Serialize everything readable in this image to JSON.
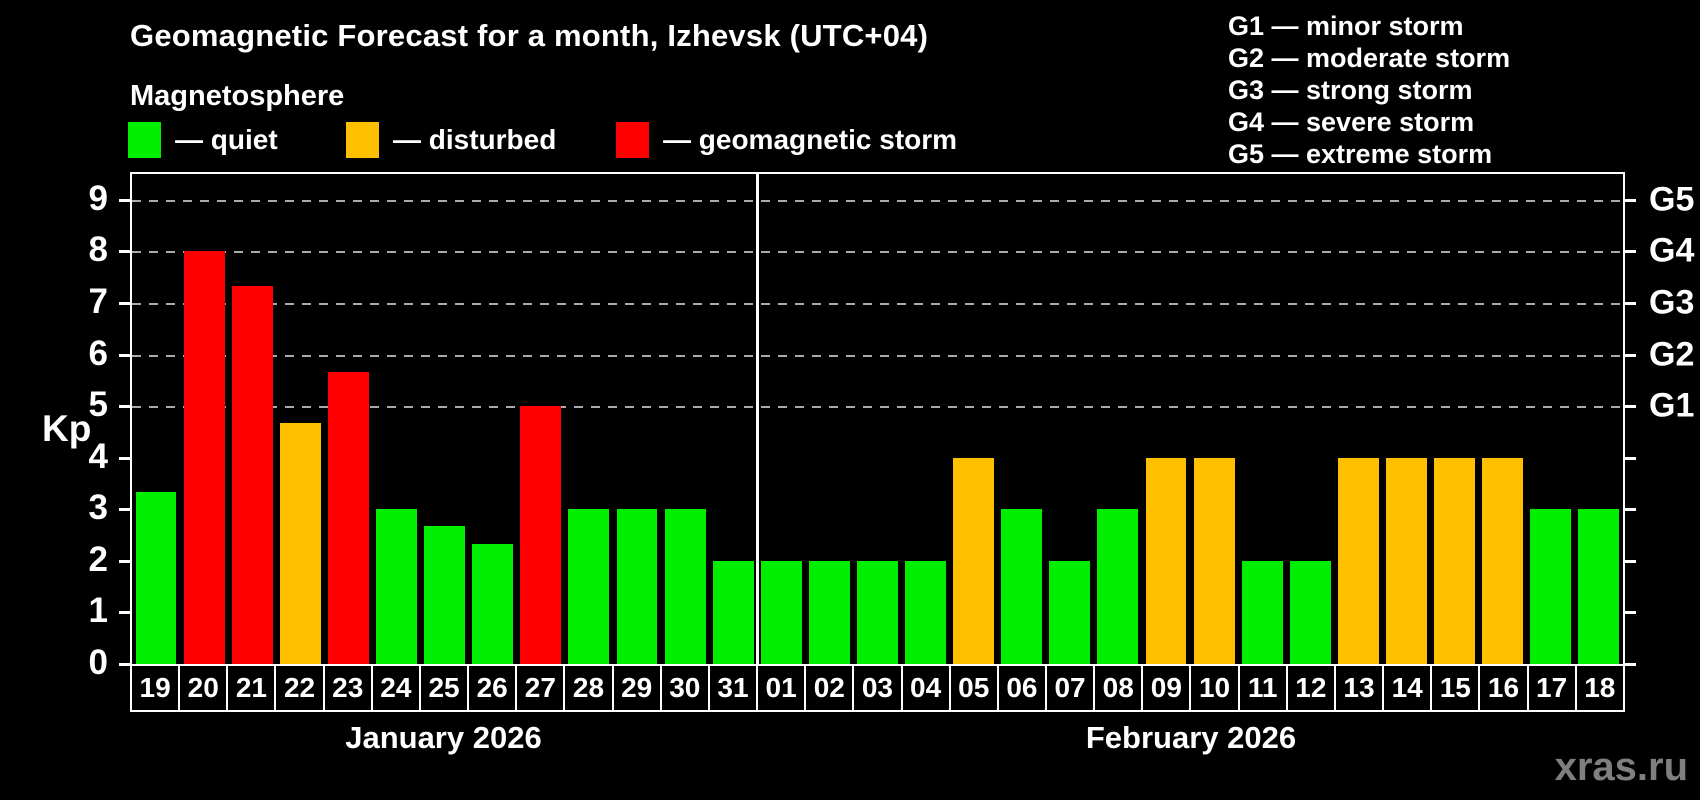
{
  "header": {
    "title": "Geomagnetic Forecast for a month, Izhevsk (UTC+04)",
    "subtitle": "Magnetosphere"
  },
  "legend": {
    "items": [
      {
        "name": "quiet",
        "label": "— quiet"
      },
      {
        "name": "disturbed",
        "label": "— disturbed"
      },
      {
        "name": "storm",
        "label": "— geomagnetic storm"
      }
    ]
  },
  "g_legend": {
    "items": [
      "G1 — minor storm",
      "G2 — moderate storm",
      "G3 — strong storm",
      "G4 — severe storm",
      "G5 — extreme storm"
    ]
  },
  "colors": {
    "quiet": "#00ee00",
    "disturbed": "#ffc000",
    "storm": "#ff0000",
    "background": "#000000",
    "text": "#ffffff",
    "grid": "#aaaaaa",
    "watermark": "#7f7f7f"
  },
  "chart_data": {
    "type": "bar",
    "title": "Geomagnetic Forecast for a month, Izhevsk (UTC+04)",
    "xlabel": "",
    "ylabel": "Kp",
    "ylim": [
      0,
      9.5
    ],
    "yticks": [
      0,
      1,
      2,
      3,
      4,
      5,
      6,
      7,
      8,
      9
    ],
    "gridlines_at": [
      5,
      6,
      7,
      8,
      9
    ],
    "grid": "dashed",
    "legend_position": "top",
    "right_axis_labels": [
      {
        "label": "G1",
        "kp": 5
      },
      {
        "label": "G2",
        "kp": 6
      },
      {
        "label": "G3",
        "kp": 7
      },
      {
        "label": "G4",
        "kp": 8
      },
      {
        "label": "G5",
        "kp": 9
      }
    ],
    "months": [
      {
        "label": "January 2026",
        "days": 13
      },
      {
        "label": "February 2026",
        "days": 18
      }
    ],
    "categories": [
      "19",
      "20",
      "21",
      "22",
      "23",
      "24",
      "25",
      "26",
      "27",
      "28",
      "29",
      "30",
      "31",
      "01",
      "02",
      "03",
      "04",
      "05",
      "06",
      "07",
      "08",
      "09",
      "10",
      "11",
      "12",
      "13",
      "14",
      "15",
      "16",
      "17",
      "18"
    ],
    "values": [
      3.33,
      8,
      7.33,
      4.67,
      5.67,
      3,
      2.67,
      2.33,
      5,
      3,
      3,
      3,
      2,
      2,
      2,
      2,
      2,
      4,
      3,
      2,
      3,
      4,
      4,
      2,
      2,
      4,
      4,
      4,
      4,
      3,
      3
    ],
    "statuses": [
      "quiet",
      "storm",
      "storm",
      "disturbed",
      "storm",
      "quiet",
      "quiet",
      "quiet",
      "storm",
      "quiet",
      "quiet",
      "quiet",
      "quiet",
      "quiet",
      "quiet",
      "quiet",
      "quiet",
      "disturbed",
      "quiet",
      "quiet",
      "quiet",
      "disturbed",
      "disturbed",
      "quiet",
      "quiet",
      "disturbed",
      "disturbed",
      "disturbed",
      "disturbed",
      "quiet",
      "quiet"
    ]
  },
  "watermark": "xras.ru"
}
